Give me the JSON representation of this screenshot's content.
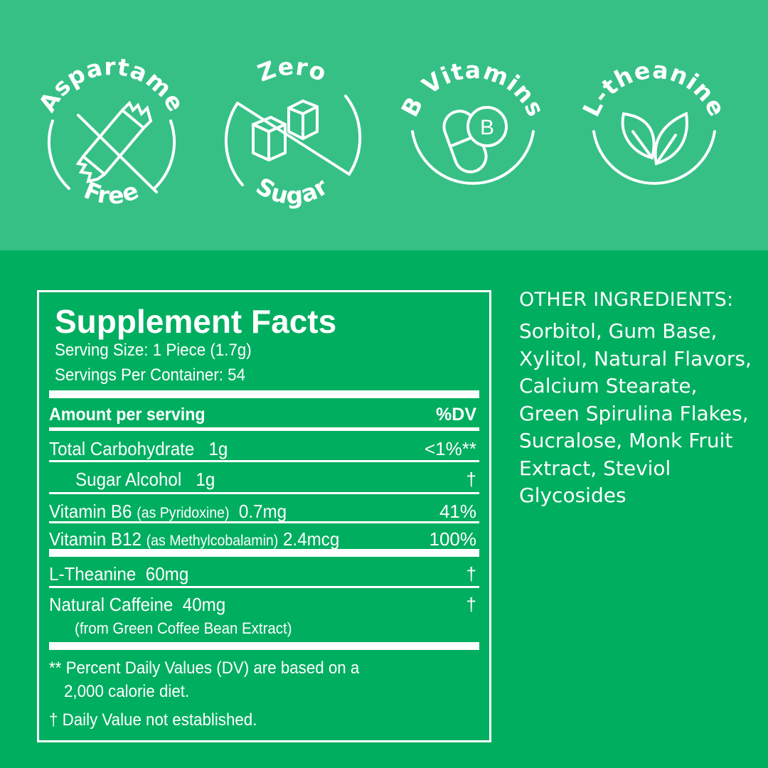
{
  "colors": {
    "top_band": "#36c086",
    "background": "#00ae60",
    "foreground": "#ffffff"
  },
  "badges": [
    {
      "top": "Aspartame",
      "bottom": "Free",
      "icon": "crossed-out-candy-icon"
    },
    {
      "top": "Zero",
      "bottom": "Sugar",
      "icon": "crossed-out-sugar-cubes-icon"
    },
    {
      "top": "B Vitamins",
      "bottom": "",
      "icon": "vitamin-b-capsule-icon",
      "icon_letter": "B"
    },
    {
      "top": "L-theanine",
      "bottom": "",
      "icon": "leaves-icon"
    }
  ],
  "facts": {
    "title": "Supplement Facts",
    "serving_size": "Serving Size: 1 Piece (1.7g)",
    "servings_per_container": "Servings Per Container: 54",
    "header_amount": "Amount per serving",
    "header_dv": "%DV",
    "rows": [
      {
        "name": "Total Carbohydrate",
        "qual": "",
        "amount": "1g",
        "dv": "<1%**"
      },
      {
        "name": "Sugar Alcohol",
        "qual": "",
        "amount": "1g",
        "dv": "†"
      },
      {
        "name": "Vitamin B6",
        "qual": "(as Pyridoxine)",
        "amount": "0.7mg",
        "dv": "41%"
      },
      {
        "name": "Vitamin B12",
        "qual": "(as Methylcobalamin)",
        "amount": "2.4mcg",
        "dv": "100%"
      },
      {
        "name": "L-Theanine",
        "qual": "",
        "amount": "60mg",
        "dv": "†"
      },
      {
        "name": "Natural Caffeine",
        "qual": "",
        "amount": "40mg",
        "dv": "†",
        "sub": "(from Green Coffee Bean Extract)"
      }
    ],
    "footnote_1a": "** Percent Daily Values (DV) are based on a",
    "footnote_1b": "2,000 calorie diet.",
    "footnote_2": "† Daily Value not established."
  },
  "other_ingredients": {
    "heading": "OTHER INGREDIENTS:",
    "text": "Sorbitol, Gum Base, Xylitol, Natural Flavors, Calcium Stearate, Green Spirulina Flakes, Sucralose, Monk Fruit Extract, Steviol Glycosides"
  }
}
